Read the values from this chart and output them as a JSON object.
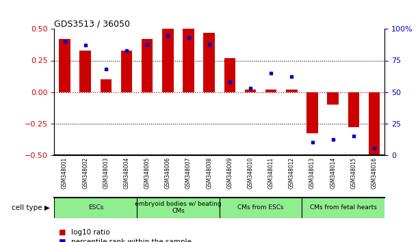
{
  "title": "GDS3513 / 36050",
  "samples": [
    "GSM348001",
    "GSM348002",
    "GSM348003",
    "GSM348004",
    "GSM348005",
    "GSM348006",
    "GSM348007",
    "GSM348008",
    "GSM348009",
    "GSM348010",
    "GSM348011",
    "GSM348012",
    "GSM348013",
    "GSM348014",
    "GSM348015",
    "GSM348016"
  ],
  "log10_ratio": [
    0.42,
    0.33,
    0.1,
    0.33,
    0.42,
    0.5,
    0.5,
    0.47,
    0.27,
    0.02,
    0.02,
    0.02,
    -0.33,
    -0.1,
    -0.28,
    -0.5
  ],
  "percentile_rank": [
    90,
    87,
    68,
    83,
    88,
    95,
    93,
    88,
    58,
    53,
    65,
    62,
    10,
    12,
    15,
    5
  ],
  "ylim": [
    -0.5,
    0.5
  ],
  "yticks_left": [
    -0.5,
    -0.25,
    0.0,
    0.25,
    0.5
  ],
  "yticks_right": [
    0,
    25,
    50,
    75,
    100
  ],
  "groups": [
    {
      "label": "ESCs",
      "start": 0,
      "end": 4
    },
    {
      "label": "embryoid bodies w/ beating\nCMs",
      "start": 4,
      "end": 8
    },
    {
      "label": "CMs from ESCs",
      "start": 8,
      "end": 12
    },
    {
      "label": "CMs from fetal hearts",
      "start": 12,
      "end": 16
    }
  ],
  "bar_color": "#CC0000",
  "dot_color": "#0000CC",
  "bar_width": 0.55,
  "background_color": "#ffffff",
  "plot_bg_color": "#ffffff",
  "sample_label_bg": "#C8C8C8",
  "cell_type_bg": "#90EE90",
  "legend_red_label": "log10 ratio",
  "legend_blue_label": "percentile rank within the sample",
  "cell_type_label": "cell type"
}
